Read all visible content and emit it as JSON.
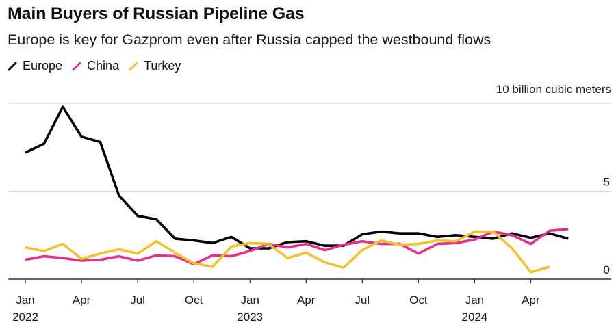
{
  "chart_data": {
    "type": "line",
    "title": "Main Buyers of Russian Pipeline Gas",
    "subtitle": "Europe is key for Gazprom even after Russia capped the westbound flows",
    "ylabel": "10 billion cubic meters",
    "xlabel": "",
    "ylim": [
      0,
      10
    ],
    "yticks": [
      0,
      5,
      10
    ],
    "ytick_labels": [
      "0",
      "5",
      ""
    ],
    "grid": true,
    "legend_position": "top-left",
    "x": [
      "2022-01",
      "2022-02",
      "2022-03",
      "2022-04",
      "2022-05",
      "2022-06",
      "2022-07",
      "2022-08",
      "2022-09",
      "2022-10",
      "2022-11",
      "2022-12",
      "2023-01",
      "2023-02",
      "2023-03",
      "2023-04",
      "2023-05",
      "2023-06",
      "2023-07",
      "2023-08",
      "2023-09",
      "2023-10",
      "2023-11",
      "2023-12",
      "2024-01",
      "2024-02",
      "2024-03",
      "2024-04",
      "2024-05",
      "2024-06"
    ],
    "xticks": [
      {
        "index": 0,
        "label": "Jan",
        "year": "2022"
      },
      {
        "index": 3,
        "label": "Apr",
        "year": ""
      },
      {
        "index": 6,
        "label": "Jul",
        "year": ""
      },
      {
        "index": 9,
        "label": "Oct",
        "year": ""
      },
      {
        "index": 12,
        "label": "Jan",
        "year": "2023"
      },
      {
        "index": 15,
        "label": "Apr",
        "year": ""
      },
      {
        "index": 18,
        "label": "Jul",
        "year": ""
      },
      {
        "index": 21,
        "label": "Oct",
        "year": ""
      },
      {
        "index": 24,
        "label": "Jan",
        "year": "2024"
      },
      {
        "index": 27,
        "label": "Apr",
        "year": ""
      }
    ],
    "series": [
      {
        "name": "Europe",
        "color": "#000000",
        "values": [
          7.2,
          7.7,
          9.8,
          8.1,
          7.8,
          4.75,
          3.6,
          3.4,
          2.3,
          2.2,
          2.05,
          2.4,
          1.75,
          1.75,
          2.1,
          2.15,
          1.9,
          1.9,
          2.55,
          2.7,
          2.6,
          2.6,
          2.4,
          2.5,
          2.4,
          2.3,
          2.6,
          2.35,
          2.6,
          2.3
        ]
      },
      {
        "name": "China",
        "color": "#e2308c",
        "values": [
          1.1,
          1.3,
          1.2,
          1.05,
          1.1,
          1.3,
          1.05,
          1.35,
          1.3,
          0.85,
          1.35,
          1.3,
          1.6,
          2.0,
          1.8,
          2.0,
          1.65,
          1.95,
          2.15,
          2.0,
          2.0,
          1.45,
          2.0,
          2.05,
          2.25,
          2.7,
          2.5,
          2.0,
          2.75,
          2.85
        ]
      },
      {
        "name": "Turkey",
        "color": "#f2c12e",
        "values": [
          1.8,
          1.6,
          2.0,
          1.15,
          1.45,
          1.7,
          1.45,
          2.15,
          1.5,
          0.9,
          0.7,
          1.85,
          2.05,
          2.0,
          1.2,
          1.5,
          0.95,
          0.65,
          1.65,
          2.2,
          1.95,
          2.0,
          2.2,
          2.15,
          2.7,
          2.7,
          1.75,
          0.4,
          0.7,
          null
        ]
      }
    ]
  }
}
